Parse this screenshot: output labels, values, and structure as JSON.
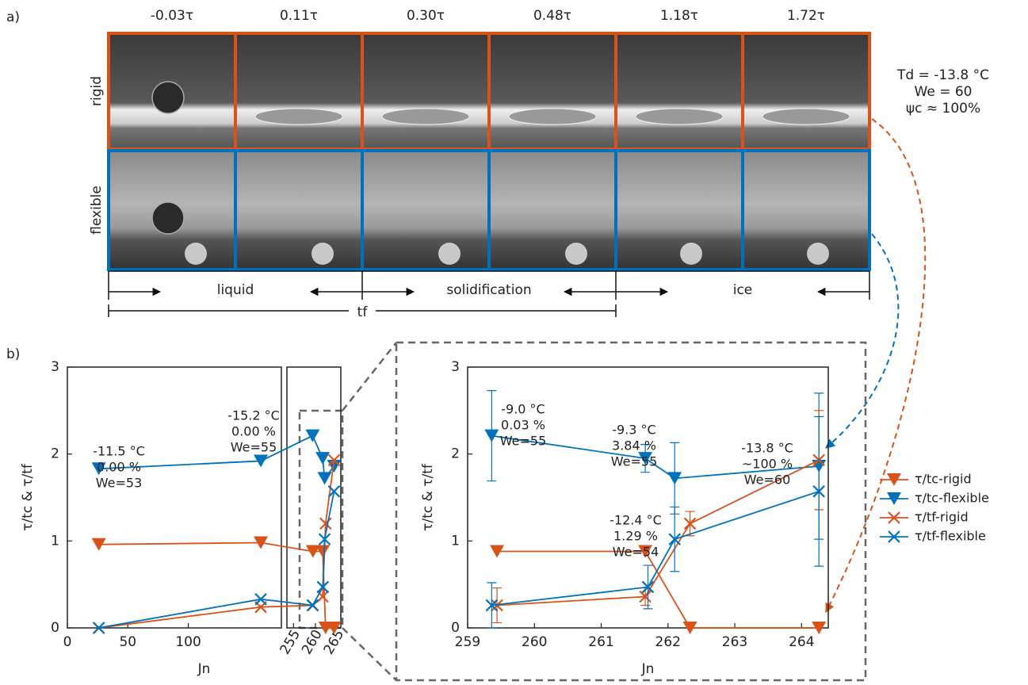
{
  "panel_a": {
    "label": "a)",
    "times": [
      "-0.03τ",
      "0.11τ",
      "0.30τ",
      "0.48τ",
      "1.18τ",
      "1.72τ"
    ],
    "rows": [
      "rigid",
      "flexible"
    ],
    "conditions": [
      "Td = -13.8 °C",
      "We = 60",
      "ψc ≈ 100%"
    ],
    "phases": [
      "liquid",
      "solidification",
      "ice"
    ],
    "freezing_time": "tf"
  },
  "panel_b_label": "b)",
  "chart_data": [
    {
      "type": "line",
      "ylabel": "τ/tc & τ/tf",
      "xlabel": "Jn",
      "ylim": [
        0,
        3
      ],
      "yticks": [
        0,
        1,
        2,
        3
      ],
      "x_segments": [
        {
          "xlim": [
            0,
            177
          ],
          "xticks": [
            0,
            50,
            100
          ]
        },
        {
          "xlim": [
            253.5,
            265.8
          ],
          "xticks": [
            255,
            260,
            265
          ]
        }
      ],
      "series": [
        {
          "color": "#d95319",
          "marker": "triangle-down",
          "x": [
            26,
            160,
            259.44,
            261.66,
            262.33,
            264.26
          ],
          "values": [
            0.96,
            0.98,
            0.88,
            0.88,
            0,
            0
          ]
        },
        {
          "color": "#0072bd",
          "marker": "triangle-down",
          "x": [
            26,
            160,
            259.36,
            261.66,
            262.1,
            264.26
          ],
          "values": [
            1.83,
            1.92,
            2.21,
            1.95,
            1.72,
            1.86
          ]
        },
        {
          "color": "#d95319",
          "marker": "x",
          "x": [
            26,
            160,
            259.44,
            261.66,
            262.33,
            264.26
          ],
          "values": [
            0,
            0.24,
            0.26,
            0.36,
            1.2,
            1.93
          ]
        },
        {
          "color": "#0072bd",
          "marker": "x",
          "x": [
            26,
            160,
            259.36,
            261.7,
            262.1,
            264.26
          ],
          "values": [
            0,
            0.33,
            0.26,
            0.47,
            1.02,
            1.57
          ]
        }
      ],
      "annotations": [
        [
          "-11.5 °C",
          "0.00 %",
          "We=53"
        ],
        [
          "-15.2 °C",
          "0.00 %",
          "We=55"
        ]
      ]
    },
    {
      "type": "line",
      "ylabel": "τ/tc & τ/tf",
      "xlabel": "Jn",
      "xlim": [
        259,
        264.4
      ],
      "xticks": [
        259,
        260,
        261,
        262,
        263,
        264
      ],
      "ylim": [
        0,
        3
      ],
      "yticks": [
        0,
        1,
        2,
        3
      ],
      "legend": "right",
      "series": [
        {
          "name": "τ/tc-rigid",
          "color": "#d95319",
          "marker": "triangle-down",
          "x": [
            259.44,
            261.66,
            262.33,
            264.26
          ],
          "values": [
            0.88,
            0.88,
            0,
            0
          ]
        },
        {
          "name": "τ/tc-flexible",
          "color": "#0072bd",
          "marker": "triangle-down",
          "x": [
            259.36,
            261.66,
            262.1,
            264.26
          ],
          "values": [
            2.21,
            1.95,
            1.72,
            1.86
          ],
          "errors": [
            0.52,
            0.16,
            0.41,
            0.84
          ]
        },
        {
          "name": "τ/tf-rigid",
          "color": "#d95319",
          "marker": "x",
          "x": [
            259.44,
            261.66,
            262.33,
            264.26
          ],
          "values": [
            0.26,
            0.36,
            1.2,
            1.93
          ],
          "errors": [
            0.2,
            0.1,
            0.14,
            0.57
          ]
        },
        {
          "name": "τ/tf-flexible",
          "color": "#0072bd",
          "marker": "x",
          "x": [
            259.36,
            261.7,
            262.1,
            264.26
          ],
          "values": [
            0.26,
            0.47,
            1.02,
            1.57
          ],
          "errors": [
            0.26,
            0.25,
            0.37,
            0.86
          ]
        }
      ],
      "annotations": [
        [
          "-9.0 °C",
          "0.03 %",
          "We=55"
        ],
        [
          "-9.3 °C",
          "3.84 %",
          "We=55"
        ],
        [
          "-12.4 °C",
          "1.29 %",
          "We=54"
        ],
        [
          "-13.8 °C",
          "~100 %",
          "We=60"
        ]
      ]
    }
  ]
}
